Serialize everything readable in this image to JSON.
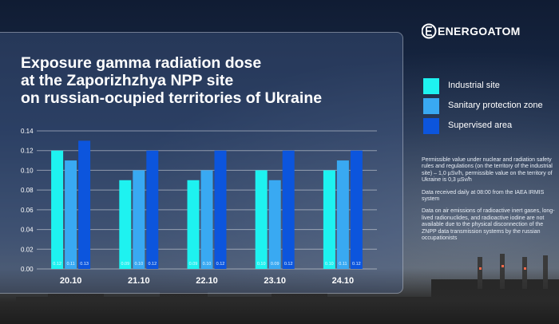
{
  "brand": {
    "name": "ENERGOATOM"
  },
  "title_lines": [
    "Exposure gamma radiation dose",
    "at the Zaporizhzhya NPP site",
    "on russian-ocupied territories of Ukraine"
  ],
  "legend": [
    {
      "label": "Industrial site",
      "color": "#1ef2f0"
    },
    {
      "label": "Sanitary protection zone",
      "color": "#39a9f2"
    },
    {
      "label": "Supervised area",
      "color": "#0c55dd"
    }
  ],
  "notes": [
    "Permissible value under nuclear and radiation safety rules and regulations (on the territory of the industrial site) – 1,0 µSv/h, permissible value on the territory of Ukraine is 0,3 µSv/h",
    "Data received daily at 08:00 from the IAEA IRMIS system",
    "Data on air emissions of radioactive inert gases, long-lived radionuclides, and radioactive iodine are not available due to the physical disconnection of the ZNPP data transmission systems by the russian occupationists"
  ],
  "chart_data": {
    "type": "bar",
    "categories": [
      "20.10",
      "21.10",
      "22.10",
      "23.10",
      "24.10"
    ],
    "series": [
      {
        "name": "Industrial site",
        "values": [
          0.12,
          0.09,
          0.09,
          0.1,
          0.1
        ],
        "labels": [
          "0.12",
          "0.09",
          "0.09",
          "0.10",
          "0.10"
        ],
        "color": "#1ef2f0"
      },
      {
        "name": "Sanitary protection zone",
        "values": [
          0.11,
          0.1,
          0.1,
          0.09,
          0.11
        ],
        "labels": [
          "0.11",
          "0.10",
          "0.10",
          "0.09",
          "0.11"
        ],
        "color": "#39a9f2"
      },
      {
        "name": "Supervised area",
        "values": [
          0.13,
          0.12,
          0.12,
          0.12,
          0.12
        ],
        "labels": [
          "0.13",
          "0.12",
          "0.12",
          "0.12",
          "0.12"
        ],
        "color": "#0c55dd"
      }
    ],
    "yticks": [
      "0.00",
      "0.02",
      "0.04",
      "0.06",
      "0.08",
      "0.10",
      "0.12",
      "0.14"
    ],
    "ylim": [
      0,
      0.14
    ],
    "grid": true,
    "legend_position": "right"
  }
}
